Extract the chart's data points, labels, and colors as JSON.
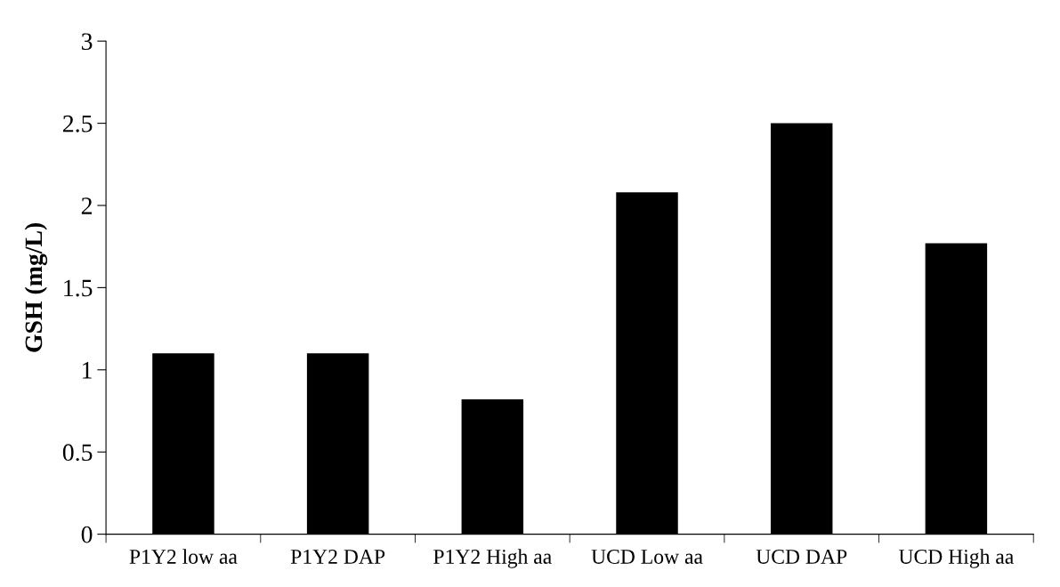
{
  "chart_data": {
    "type": "bar",
    "ylabel": "GSH (mg/L)",
    "categories": [
      "P1Y2 low aa",
      "P1Y2 DAP",
      "P1Y2 High aa",
      "UCD Low aa",
      "UCD DAP",
      "UCD High aa"
    ],
    "values": [
      1.1,
      1.1,
      0.82,
      2.08,
      2.5,
      1.77
    ],
    "color": "#000000",
    "ylim": [
      0,
      3
    ],
    "yticks": [
      0,
      0.5,
      1,
      1.5,
      2,
      2.5,
      3
    ],
    "grid": false
  }
}
